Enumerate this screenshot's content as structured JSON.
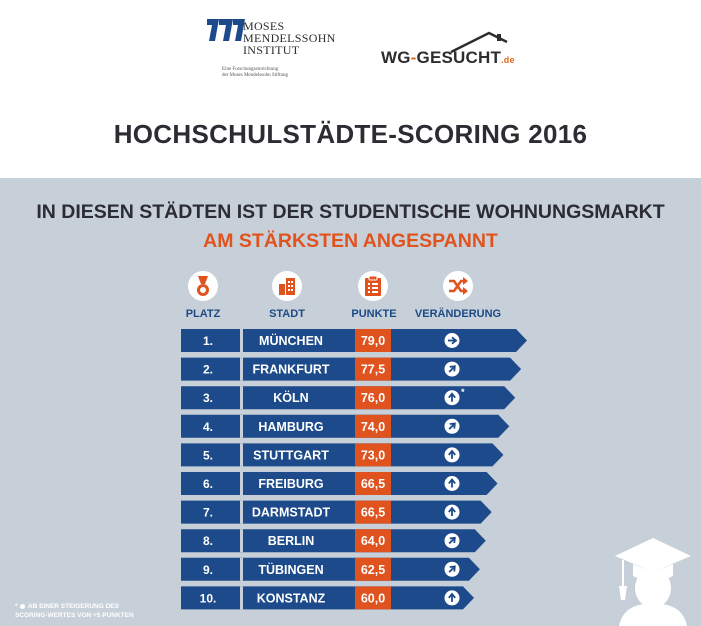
{
  "logos": {
    "mmi": {
      "name_lines": [
        "MOSES",
        "MENDELSSOHN",
        "INSTITUT"
      ],
      "tagline_lines": [
        "Eine Forschungseinrichtung",
        "der Moses Mendelssohn Stiftung"
      ]
    },
    "wg": {
      "main": "WG",
      "dash": "-",
      "rest": "GESUCHT",
      "tld": ".de"
    }
  },
  "title": "HOCHSCHULSTÄDTE-SCORING 2016",
  "subtitle_line1": "IN DIESEN STÄDTEN IST DER STUDENTISCHE WOHNUNGSMARKT",
  "subtitle_line2": "AM STÄRKSTEN ANGESPANNT",
  "columns": {
    "platz": "PLATZ",
    "stadt": "STADT",
    "punkte": "PUNKTE",
    "veraenderung": "VERÄNDERUNG"
  },
  "icons": {
    "platz": "medal-icon",
    "stadt": "buildings-icon",
    "punkte": "clipboard-icon",
    "veraenderung": "shuffle-icon"
  },
  "colors": {
    "navy": "#1d4a8a",
    "orange": "#e0531e",
    "panel": "#c7d0d8",
    "title": "#2c2c33"
  },
  "chart_data": {
    "type": "table",
    "columns": [
      "PLATZ",
      "STADT",
      "PUNKTE",
      "VERÄNDERUNG"
    ],
    "rows": [
      {
        "rank": "1.",
        "city": "MÜNCHEN",
        "points": "79,0",
        "value": 79.0,
        "change": "right",
        "note": ""
      },
      {
        "rank": "2.",
        "city": "FRANKFURT",
        "points": "77,5",
        "value": 77.5,
        "change": "up-right",
        "note": ""
      },
      {
        "rank": "3.",
        "city": "KÖLN",
        "points": "76,0",
        "value": 76.0,
        "change": "up",
        "note": "*"
      },
      {
        "rank": "4.",
        "city": "HAMBURG",
        "points": "74,0",
        "value": 74.0,
        "change": "up-right",
        "note": ""
      },
      {
        "rank": "5.",
        "city": "STUTTGART",
        "points": "73,0",
        "value": 73.0,
        "change": "up",
        "note": ""
      },
      {
        "rank": "6.",
        "city": "FREIBURG",
        "points": "66,5",
        "value": 66.5,
        "change": "up",
        "note": ""
      },
      {
        "rank": "7.",
        "city": "DARMSTADT",
        "points": "66,5",
        "value": 66.5,
        "change": "up",
        "note": ""
      },
      {
        "rank": "8.",
        "city": "BERLIN",
        "points": "64,0",
        "value": 64.0,
        "change": "up-right",
        "note": ""
      },
      {
        "rank": "9.",
        "city": "TÜBINGEN",
        "points": "62,5",
        "value": 62.5,
        "change": "up-right",
        "note": ""
      },
      {
        "rank": "10.",
        "city": "KONSTANZ",
        "points": "60,0",
        "value": 60.0,
        "change": "up",
        "note": ""
      }
    ]
  },
  "footnote": {
    "line1_prefix": "*",
    "line1_rest": "AB EINER STEIGERUNG DES",
    "line2": "SCORING-WERTES VON +5 PUNKTEN"
  }
}
